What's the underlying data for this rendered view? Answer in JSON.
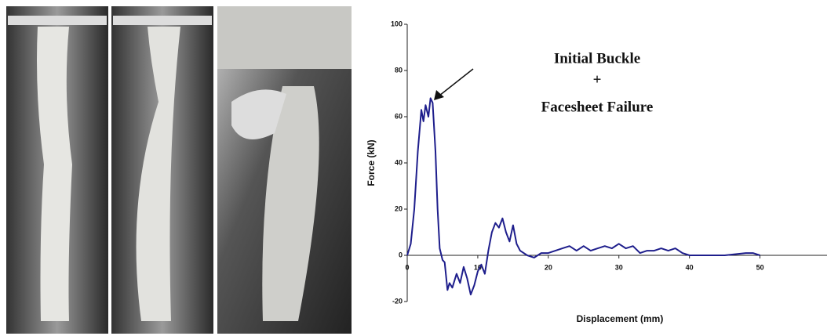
{
  "chart_data": {
    "type": "line",
    "y_label": "Force (kN)",
    "x_label": "Displacement (mm)",
    "annotations": [
      "Initial Buckle",
      "+",
      "Facesheet Failure"
    ],
    "xlim": [
      0,
      59.5
    ],
    "xticks": [
      0,
      10,
      20,
      30,
      40,
      50
    ],
    "ylim": [
      -20,
      100
    ],
    "yticks": [
      -20,
      0,
      20,
      40,
      60,
      80,
      100
    ],
    "color": "#1e1e8c",
    "x": [
      0,
      0.5,
      1,
      1.5,
      2,
      2.3,
      2.6,
      3,
      3.3,
      3.6,
      4,
      4.3,
      4.6,
      5,
      5.3,
      5.7,
      6,
      6.4,
      7,
      7.5,
      8,
      8.5,
      9,
      9.5,
      10,
      10.5,
      11,
      11.5,
      12,
      12.5,
      13,
      13.5,
      14,
      14.5,
      15,
      15.5,
      16,
      17,
      18,
      19,
      20,
      21,
      22,
      23,
      24,
      25,
      26,
      27,
      28,
      29,
      30,
      31,
      32,
      33,
      34,
      35,
      36,
      37,
      38,
      39,
      40,
      42,
      45,
      48,
      49,
      50
    ],
    "values": [
      0,
      5,
      20,
      45,
      63,
      58,
      65,
      60,
      68,
      66,
      45,
      20,
      3,
      -2,
      -3,
      -15,
      -12,
      -14,
      -8,
      -12,
      -5,
      -10,
      -17,
      -13,
      -7,
      -4,
      -8,
      2,
      10,
      14,
      12,
      16,
      10,
      6,
      13,
      5,
      2,
      0,
      -1,
      1,
      1,
      2,
      3,
      4,
      2,
      4,
      2,
      3,
      4,
      3,
      5,
      3,
      4,
      1,
      2,
      2,
      3,
      2,
      3,
      1,
      0,
      0,
      0,
      1,
      1,
      0
    ]
  }
}
